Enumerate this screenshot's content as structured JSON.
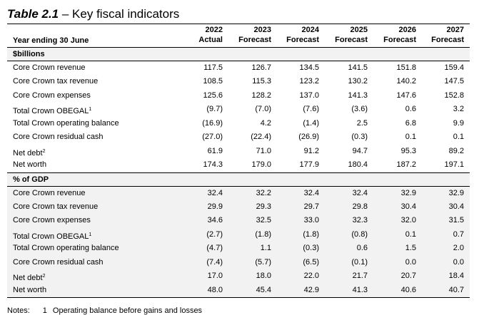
{
  "title": {
    "number": "Table 2.1",
    "dash": " – ",
    "text": "Key fiscal indicators"
  },
  "header": {
    "row_label": "Year ending 30 June",
    "columns": [
      {
        "year": "2022",
        "type": "Actual"
      },
      {
        "year": "2023",
        "type": "Forecast"
      },
      {
        "year": "2024",
        "type": "Forecast"
      },
      {
        "year": "2025",
        "type": "Forecast"
      },
      {
        "year": "2026",
        "type": "Forecast"
      },
      {
        "year": "2027",
        "type": "Forecast"
      }
    ]
  },
  "sections": [
    {
      "label": "$billions",
      "rows": [
        {
          "label": "Core Crown revenue",
          "sup": "",
          "values": [
            "117.5",
            "126.7",
            "134.5",
            "141.5",
            "151.8",
            "159.4"
          ]
        },
        {
          "label": "Core Crown tax revenue",
          "sup": "",
          "values": [
            "108.5",
            "115.3",
            "123.2",
            "130.2",
            "140.2",
            "147.5"
          ]
        },
        {
          "label": "Core Crown expenses",
          "sup": "",
          "values": [
            "125.6",
            "128.2",
            "137.0",
            "141.3",
            "147.6",
            "152.8"
          ]
        },
        {
          "label": "Total Crown OBEGAL",
          "sup": "1",
          "values": [
            "(9.7)",
            "(7.0)",
            "(7.6)",
            "(3.6)",
            "0.6",
            "3.2"
          ]
        },
        {
          "label": "Total Crown operating balance",
          "sup": "",
          "values": [
            "(16.9)",
            "4.2",
            "(1.4)",
            "2.5",
            "6.8",
            "9.9"
          ]
        },
        {
          "label": "Core Crown residual cash",
          "sup": "",
          "values": [
            "(27.0)",
            "(22.4)",
            "(26.9)",
            "(0.3)",
            "0.1",
            "0.1"
          ]
        },
        {
          "label": "Net debt",
          "sup": "2",
          "values": [
            "61.9",
            "71.0",
            "91.2",
            "94.7",
            "95.3",
            "89.2"
          ]
        },
        {
          "label": "Net worth",
          "sup": "",
          "values": [
            "174.3",
            "179.0",
            "177.9",
            "180.4",
            "187.2",
            "197.1"
          ]
        }
      ]
    },
    {
      "label": "% of GDP",
      "rows": [
        {
          "label": "Core Crown revenue",
          "sup": "",
          "values": [
            "32.4",
            "32.2",
            "32.4",
            "32.4",
            "32.9",
            "32.9"
          ]
        },
        {
          "label": "Core Crown tax revenue",
          "sup": "",
          "values": [
            "29.9",
            "29.3",
            "29.7",
            "29.8",
            "30.4",
            "30.4"
          ]
        },
        {
          "label": "Core Crown expenses",
          "sup": "",
          "values": [
            "34.6",
            "32.5",
            "33.0",
            "32.3",
            "32.0",
            "31.5"
          ]
        },
        {
          "label": "Total Crown OBEGAL",
          "sup": "1",
          "values": [
            "(2.7)",
            "(1.8)",
            "(1.8)",
            "(0.8)",
            "0.1",
            "0.7"
          ]
        },
        {
          "label": "Total Crown operating balance",
          "sup": "",
          "values": [
            "(4.7)",
            "1.1",
            "(0.3)",
            "0.6",
            "1.5",
            "2.0"
          ]
        },
        {
          "label": "Core Crown residual cash",
          "sup": "",
          "values": [
            "(7.4)",
            "(5.7)",
            "(6.5)",
            "(0.1)",
            "0.0",
            "0.0"
          ]
        },
        {
          "label": "Net debt",
          "sup": "2",
          "values": [
            "17.0",
            "18.0",
            "22.0",
            "21.7",
            "20.7",
            "18.4"
          ]
        },
        {
          "label": "Net worth",
          "sup": "",
          "values": [
            "48.0",
            "45.4",
            "42.9",
            "41.3",
            "40.6",
            "40.7"
          ]
        }
      ]
    }
  ],
  "notes": {
    "label": "Notes:",
    "first_key": "1",
    "first_text": "Operating balance before gains and losses"
  }
}
